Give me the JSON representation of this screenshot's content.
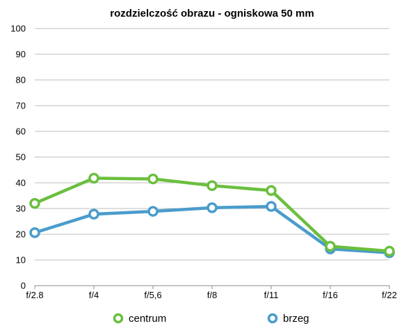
{
  "chart_data": {
    "type": "line",
    "title": "rozdzielczość obrazu - ogniskowa 50 mm",
    "categories": [
      "f/2.8",
      "f/4",
      "f/5,6",
      "f/8",
      "f/11",
      "f/16",
      "f/22"
    ],
    "ylim": [
      0,
      100
    ],
    "yticks": [
      0,
      10,
      20,
      30,
      40,
      50,
      60,
      70,
      80,
      90,
      100
    ],
    "grid": true,
    "legend_position": "bottom",
    "series": [
      {
        "name": "centrum",
        "color": "#6abf3e",
        "values": [
          32,
          41.8,
          41.5,
          38.9,
          37,
          15.3,
          13.4
        ]
      },
      {
        "name": "brzeg",
        "color": "#4a9ccc",
        "values": [
          20.6,
          27.8,
          28.9,
          30.3,
          30.8,
          14.3,
          12.8
        ]
      }
    ]
  }
}
